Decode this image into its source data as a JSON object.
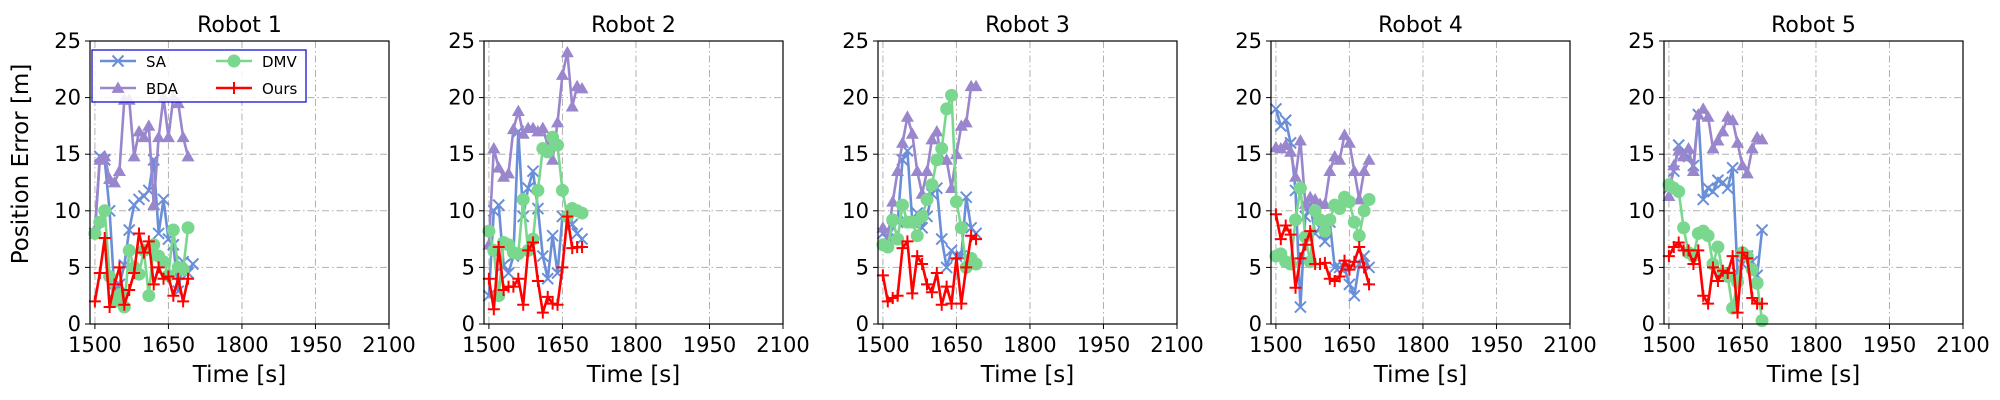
{
  "ylabel": "Position Error [m]",
  "xlabel": "Time [s]",
  "colors": {
    "SA": "#6a8fd8",
    "BDA": "#9a86cc",
    "DMV": "#7ad88e",
    "Ours": "#ff0000"
  },
  "legend": {
    "entries": [
      "SA",
      "BDA",
      "DMV",
      "Ours"
    ],
    "placement": "upper-left of first panel"
  },
  "chart_data": [
    {
      "type": "line",
      "title": "Robot 1",
      "xlabel": "Time [s]",
      "ylabel": "Position Error [m]",
      "xlim": [
        1490,
        2100
      ],
      "ylim": [
        0,
        25
      ],
      "xticks": [
        1500,
        1650,
        1800,
        1950,
        2100
      ],
      "yticks": [
        0,
        5,
        10,
        15,
        20,
        25
      ],
      "grid": true,
      "x": [
        1500,
        1510,
        1520,
        1530,
        1540,
        1550,
        1560,
        1570,
        1580,
        1590,
        1600,
        1610,
        1620,
        1630,
        1640,
        1650,
        1660,
        1670,
        1680,
        1690,
        1700,
        1710,
        1720,
        1730,
        1740,
        1750,
        1760,
        1770,
        1780,
        1790
      ],
      "series": [
        {
          "name": "SA",
          "marker": "x",
          "values": [
            8.0,
            14.8,
            14.5,
            10.0,
            2.8,
            3.5,
            5.2,
            8.3,
            10.5,
            11.0,
            11.3,
            11.8,
            14.5,
            8.0,
            11.0,
            7.5,
            7.0,
            2.9,
            5.5,
            4.5,
            5.3,
            null,
            null,
            null,
            null,
            null,
            null,
            null,
            null,
            null
          ]
        },
        {
          "name": "BDA",
          "marker": "triangle",
          "values": [
            8.3,
            14.5,
            14.8,
            12.8,
            12.5,
            13.5,
            19.8,
            19.8,
            14.8,
            17.0,
            16.5,
            17.5,
            10.5,
            16.5,
            20.0,
            16.5,
            20.0,
            19.5,
            16.5,
            14.8,
            null,
            null,
            null,
            null,
            null,
            null,
            null,
            null,
            null,
            null
          ]
        },
        {
          "name": "DMV",
          "marker": "circle",
          "values": [
            8.0,
            9.0,
            10.0,
            4.2,
            2.0,
            2.6,
            1.5,
            6.5,
            5.0,
            4.4,
            6.5,
            2.5,
            7.0,
            6.0,
            5.5,
            4.3,
            8.3,
            5.0,
            4.8,
            8.5,
            null,
            null,
            null,
            null,
            null,
            null,
            null,
            null,
            null,
            null
          ]
        },
        {
          "name": "Ours",
          "marker": "plus",
          "values": [
            2.0,
            4.5,
            7.6,
            1.5,
            3.5,
            5.0,
            1.7,
            3.0,
            4.5,
            8.0,
            6.3,
            7.3,
            3.5,
            5.0,
            4.0,
            4.2,
            2.5,
            4.0,
            2.0,
            4.0,
            null,
            null,
            null,
            null,
            null,
            null,
            null,
            null,
            null,
            null
          ]
        }
      ]
    },
    {
      "type": "line",
      "title": "Robot 2",
      "xlabel": "Time [s]",
      "ylabel": "",
      "xlim": [
        1490,
        2100
      ],
      "ylim": [
        0,
        25
      ],
      "xticks": [
        1500,
        1650,
        1800,
        1950,
        2100
      ],
      "yticks": [
        0,
        5,
        10,
        15,
        20,
        25
      ],
      "grid": true,
      "x": [
        1500,
        1510,
        1520,
        1530,
        1540,
        1550,
        1560,
        1570,
        1580,
        1590,
        1600,
        1610,
        1620,
        1630,
        1640,
        1650,
        1660,
        1670,
        1680,
        1690
      ],
      "series": [
        {
          "name": "SA",
          "marker": "x",
          "values": [
            2.5,
            10.0,
            10.5,
            5.2,
            4.5,
            6.0,
            17.0,
            9.5,
            12.0,
            13.5,
            10.2,
            6.0,
            4.0,
            7.8,
            4.5,
            9.5,
            9.5,
            8.8,
            8.0,
            7.5
          ]
        },
        {
          "name": "BDA",
          "marker": "triangle",
          "values": [
            7.0,
            15.5,
            13.8,
            13.0,
            13.3,
            17.2,
            18.8,
            16.8,
            17.3,
            17.3,
            17.0,
            17.3,
            15.8,
            14.5,
            17.8,
            22.0,
            24.0,
            19.2,
            21.0,
            20.8
          ]
        },
        {
          "name": "DMV",
          "marker": "circle",
          "values": [
            8.2,
            6.5,
            2.5,
            7.2,
            7.0,
            6.3,
            6.2,
            11.0,
            6.5,
            7.5,
            11.8,
            15.5,
            15.2,
            16.5,
            15.8,
            11.8,
            9.5,
            10.2,
            10.0,
            9.8
          ]
        },
        {
          "name": "Ours",
          "marker": "plus",
          "values": [
            4.0,
            1.3,
            6.8,
            3.0,
            3.3,
            3.3,
            4.0,
            1.7,
            6.5,
            7.2,
            3.8,
            1.0,
            2.4,
            1.8,
            1.7,
            5.0,
            9.5,
            6.7,
            6.8,
            6.8
          ]
        }
      ]
    },
    {
      "type": "line",
      "title": "Robot 3",
      "xlabel": "Time [s]",
      "ylabel": "",
      "xlim": [
        1490,
        2100
      ],
      "ylim": [
        0,
        25
      ],
      "xticks": [
        1500,
        1650,
        1800,
        1950,
        2100
      ],
      "yticks": [
        0,
        5,
        10,
        15,
        20,
        25
      ],
      "grid": true,
      "x": [
        1500,
        1510,
        1520,
        1530,
        1540,
        1550,
        1560,
        1570,
        1580,
        1590,
        1600,
        1610,
        1620,
        1630,
        1640,
        1650,
        1660,
        1670,
        1680,
        1690
      ],
      "series": [
        {
          "name": "SA",
          "marker": "x",
          "values": [
            8.0,
            7.5,
            8.5,
            9.0,
            14.5,
            15.3,
            9.0,
            9.8,
            8.5,
            9.5,
            11.5,
            12.0,
            7.5,
            5.0,
            6.5,
            6.0,
            6.0,
            11.2,
            8.5,
            8.0
          ]
        },
        {
          "name": "BDA",
          "marker": "triangle",
          "values": [
            8.5,
            7.5,
            10.8,
            13.5,
            16.0,
            18.3,
            16.8,
            13.5,
            11.5,
            13.5,
            16.3,
            17.0,
            14.5,
            14.5,
            12.0,
            15.0,
            17.5,
            17.8,
            21.0,
            21.0
          ]
        },
        {
          "name": "DMV",
          "marker": "circle",
          "values": [
            7.0,
            6.8,
            9.2,
            7.5,
            10.5,
            9.0,
            9.0,
            7.8,
            9.5,
            11.0,
            12.3,
            14.5,
            15.5,
            19.0,
            20.2,
            10.8,
            8.5,
            5.0,
            5.8,
            5.3
          ]
        },
        {
          "name": "Ours",
          "marker": "plus",
          "values": [
            4.3,
            2.0,
            2.3,
            2.5,
            6.7,
            7.3,
            2.7,
            6.0,
            5.3,
            3.5,
            2.8,
            4.5,
            1.7,
            3.3,
            1.8,
            5.8,
            1.8,
            5.0,
            7.8,
            7.5
          ]
        }
      ]
    },
    {
      "type": "line",
      "title": "Robot 4",
      "xlabel": "Time [s]",
      "ylabel": "",
      "xlim": [
        1490,
        2100
      ],
      "ylim": [
        0,
        25
      ],
      "xticks": [
        1500,
        1650,
        1800,
        1950,
        2100
      ],
      "yticks": [
        0,
        5,
        10,
        15,
        20,
        25
      ],
      "grid": true,
      "x": [
        1500,
        1510,
        1520,
        1530,
        1540,
        1550,
        1560,
        1570,
        1580,
        1590,
        1600,
        1610,
        1620,
        1630,
        1640,
        1650,
        1660,
        1670,
        1680,
        1690
      ],
      "series": [
        {
          "name": "SA",
          "marker": "x",
          "values": [
            19.0,
            17.5,
            18.0,
            16.0,
            11.8,
            1.5,
            9.5,
            10.5,
            8.0,
            8.5,
            7.3,
            9.0,
            5.0,
            5.0,
            5.0,
            3.5,
            2.5,
            5.3,
            6.0,
            5.0
          ]
        },
        {
          "name": "BDA",
          "marker": "triangle",
          "values": [
            15.6,
            15.5,
            15.8,
            15.2,
            13.0,
            16.2,
            10.6,
            11.2,
            11.0,
            10.6,
            10.6,
            13.5,
            14.8,
            14.5,
            16.7,
            16.0,
            13.5,
            11.0,
            13.5,
            14.5
          ]
        },
        {
          "name": "DMV",
          "marker": "circle",
          "values": [
            6.0,
            6.2,
            5.5,
            5.3,
            9.2,
            12.0,
            7.7,
            5.5,
            10.0,
            9.2,
            8.2,
            9.2,
            10.5,
            10.2,
            11.2,
            10.8,
            9.0,
            7.8,
            10.0,
            11.0
          ]
        },
        {
          "name": "Ours",
          "marker": "plus",
          "values": [
            9.7,
            7.5,
            8.7,
            7.9,
            3.2,
            5.8,
            7.0,
            8.2,
            5.3,
            5.3,
            5.4,
            4.0,
            3.8,
            4.2,
            5.6,
            4.8,
            5.5,
            6.8,
            5.0,
            3.5
          ]
        }
      ]
    },
    {
      "type": "line",
      "title": "Robot 5",
      "xlabel": "Time [s]",
      "ylabel": "",
      "xlim": [
        1490,
        2100
      ],
      "ylim": [
        0,
        25
      ],
      "xticks": [
        1500,
        1650,
        1800,
        1950,
        2100
      ],
      "yticks": [
        0,
        5,
        10,
        15,
        20,
        25
      ],
      "grid": true,
      "x": [
        1500,
        1510,
        1520,
        1530,
        1540,
        1550,
        1560,
        1570,
        1580,
        1590,
        1600,
        1610,
        1620,
        1630,
        1640,
        1650,
        1660,
        1670,
        1680,
        1690
      ],
      "series": [
        {
          "name": "SA",
          "marker": "x",
          "values": [
            12.0,
            13.5,
            15.8,
            15.0,
            14.8,
            14.0,
            18.5,
            11.0,
            12.0,
            11.7,
            12.7,
            12.5,
            12.0,
            13.8,
            4.5,
            5.3,
            6.0,
            5.5,
            4.3,
            8.3
          ]
        },
        {
          "name": "BDA",
          "marker": "triangle",
          "values": [
            11.3,
            14.0,
            15.3,
            14.8,
            15.5,
            13.5,
            18.5,
            19.0,
            18.3,
            15.5,
            16.2,
            17.0,
            18.3,
            18.0,
            16.0,
            14.0,
            13.3,
            15.5,
            16.5,
            16.3
          ]
        },
        {
          "name": "DMV",
          "marker": "circle",
          "values": [
            12.3,
            12.0,
            11.7,
            8.5,
            6.3,
            6.0,
            8.0,
            8.2,
            7.8,
            5.3,
            6.8,
            4.5,
            4.2,
            1.4,
            3.7,
            6.3,
            6.0,
            4.8,
            3.6,
            0.3
          ]
        },
        {
          "name": "Ours",
          "marker": "plus",
          "values": [
            6.0,
            6.8,
            7.2,
            6.5,
            6.5,
            5.3,
            6.5,
            2.5,
            1.8,
            5.0,
            3.8,
            4.7,
            4.5,
            6.0,
            1.0,
            6.3,
            5.8,
            2.3,
            1.8,
            1.8
          ]
        }
      ]
    }
  ]
}
